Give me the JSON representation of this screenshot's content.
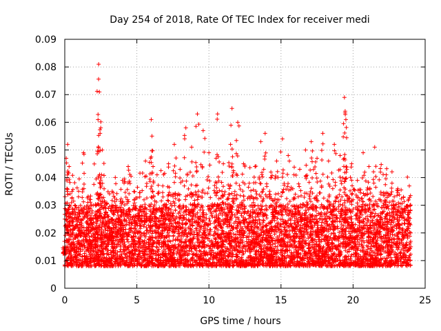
{
  "chart_data": {
    "type": "scatter",
    "title": "Day 254 of 2018, Rate Of TEC Index for receiver medi",
    "xlabel": "GPS time / hours",
    "ylabel": "ROTI / TECUs",
    "xlim": [
      0,
      25
    ],
    "ylim": [
      0,
      0.09
    ],
    "x_ticks": [
      "0",
      "5",
      "10",
      "15",
      "20",
      "25"
    ],
    "y_ticks": [
      "0",
      "0.01",
      "0.02",
      "0.03",
      "0.04",
      "0.05",
      "0.06",
      "0.07",
      "0.08",
      "0.09"
    ],
    "grid": true,
    "marker": "plus",
    "color": "#ff0000",
    "series": [
      {
        "name": "ROTI",
        "x": [
          0.0,
          0.1,
          0.2,
          0.3,
          0.5,
          0.7,
          1.0,
          1.3,
          1.6,
          1.9,
          2.2,
          2.35,
          2.4,
          2.45,
          2.6,
          2.8,
          3.0,
          3.3,
          3.6,
          4.0,
          4.4,
          4.8,
          5.2,
          5.6,
          6.0,
          6.05,
          6.4,
          6.8,
          7.2,
          7.6,
          8.0,
          8.4,
          8.8,
          9.2,
          9.6,
          10.0,
          10.5,
          10.6,
          11.0,
          11.5,
          11.6,
          12.0,
          12.4,
          12.8,
          13.2,
          13.6,
          13.9,
          14.3,
          14.7,
          15.1,
          15.5,
          15.9,
          16.3,
          16.7,
          17.1,
          17.5,
          17.9,
          18.3,
          18.7,
          19.1,
          19.4,
          19.45,
          19.5,
          19.9,
          20.3,
          20.7,
          21.1,
          21.5,
          21.9,
          22.3,
          22.7,
          23.1,
          23.5,
          23.9
        ],
        "y": [
          0.012,
          0.047,
          0.052,
          0.044,
          0.035,
          0.03,
          0.027,
          0.049,
          0.031,
          0.028,
          0.034,
          0.081,
          0.071,
          0.056,
          0.05,
          0.031,
          0.026,
          0.029,
          0.032,
          0.039,
          0.044,
          0.035,
          0.033,
          0.046,
          0.061,
          0.055,
          0.041,
          0.037,
          0.045,
          0.052,
          0.043,
          0.058,
          0.051,
          0.063,
          0.057,
          0.049,
          0.047,
          0.063,
          0.045,
          0.052,
          0.065,
          0.06,
          0.045,
          0.038,
          0.044,
          0.053,
          0.056,
          0.042,
          0.046,
          0.054,
          0.048,
          0.041,
          0.043,
          0.05,
          0.053,
          0.047,
          0.056,
          0.046,
          0.052,
          0.048,
          0.069,
          0.064,
          0.061,
          0.045,
          0.039,
          0.049,
          0.044,
          0.051,
          0.042,
          0.041,
          0.038,
          0.036,
          0.033,
          0.037
        ]
      }
    ],
    "band": {
      "low": 0.008,
      "high": 0.024
    }
  }
}
